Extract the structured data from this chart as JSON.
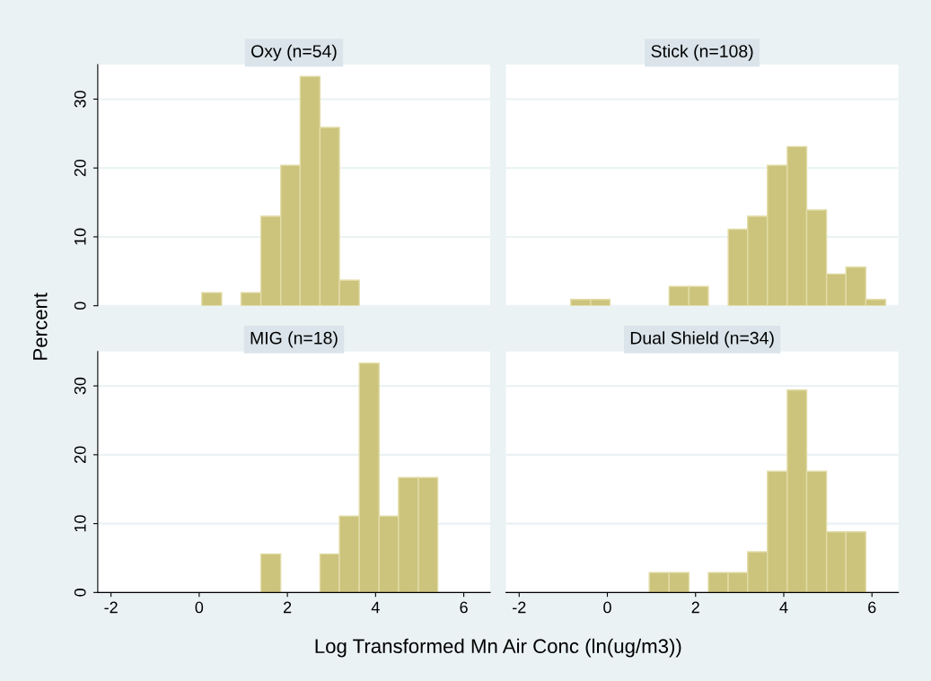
{
  "chart_data": [
    {
      "type": "histogram",
      "title": "Oxy (n=54)",
      "ylabel": "Percent",
      "bins": [
        -0.83,
        -0.38,
        0.06,
        0.51,
        0.95,
        1.4,
        1.85,
        2.29,
        2.74,
        3.18,
        3.63,
        4.08,
        4.52,
        4.97,
        5.41,
        5.86,
        6.31
      ],
      "values": [
        0,
        0,
        1.9,
        0,
        1.9,
        13.0,
        20.4,
        33.3,
        25.9,
        3.7,
        0,
        0,
        0,
        0,
        0,
        0
      ],
      "color": "#ccc47c",
      "xlim": [
        -2.3,
        6.6
      ],
      "ylim": [
        0,
        35
      ],
      "xticks": [
        -2,
        0,
        2,
        4,
        6
      ],
      "yticks": [
        0,
        10,
        20,
        30
      ],
      "grid": "y",
      "tick_labels": "y"
    },
    {
      "type": "histogram",
      "title": "Stick (n=108)",
      "bins": [
        -0.83,
        -0.38,
        0.06,
        0.51,
        0.95,
        1.4,
        1.85,
        2.29,
        2.74,
        3.18,
        3.63,
        4.08,
        4.52,
        4.97,
        5.41,
        5.86,
        6.31
      ],
      "values": [
        0.9,
        0.9,
        0,
        0,
        0,
        2.8,
        2.8,
        0,
        11.1,
        13.0,
        20.4,
        23.1,
        13.9,
        4.6,
        5.6,
        0.9
      ],
      "color": "#ccc47c",
      "xlim": [
        -2.3,
        6.6
      ],
      "ylim": [
        0,
        35
      ],
      "xticks": [
        -2,
        0,
        2,
        4,
        6
      ],
      "yticks": [
        0,
        10,
        20,
        30
      ],
      "grid": "y",
      "tick_labels": false
    },
    {
      "type": "histogram",
      "title": "MIG (n=18)",
      "xlabel": "Log Transformed Mn Air Conc (ln(ug/m3))",
      "bins": [
        -0.83,
        -0.38,
        0.06,
        0.51,
        0.95,
        1.4,
        1.85,
        2.29,
        2.74,
        3.18,
        3.63,
        4.08,
        4.52,
        4.97,
        5.41,
        5.86,
        6.31
      ],
      "values": [
        0,
        0,
        0,
        0,
        0,
        5.6,
        0,
        0,
        5.6,
        11.1,
        33.3,
        11.1,
        16.7,
        16.7,
        0,
        0
      ],
      "color": "#ccc47c",
      "xlim": [
        -2.3,
        6.6
      ],
      "ylim": [
        0,
        35
      ],
      "xticks": [
        -2,
        0,
        2,
        4,
        6
      ],
      "yticks": [
        0,
        10,
        20,
        30
      ],
      "grid": "y"
    },
    {
      "type": "histogram",
      "title": "Dual Shield (n=34)",
      "bins": [
        -0.83,
        -0.38,
        0.06,
        0.51,
        0.95,
        1.4,
        1.85,
        2.29,
        2.74,
        3.18,
        3.63,
        4.08,
        4.52,
        4.97,
        5.41,
        5.86,
        6.31
      ],
      "values": [
        0,
        0,
        0,
        0,
        2.9,
        2.9,
        0,
        2.9,
        2.9,
        5.9,
        17.6,
        29.4,
        17.6,
        8.8,
        8.8,
        0
      ],
      "color": "#ccc47c",
      "xlim": [
        -2.3,
        6.6
      ],
      "ylim": [
        0,
        35
      ],
      "xticks": [
        -2,
        0,
        2,
        4,
        6
      ],
      "yticks": [
        0,
        10,
        20,
        30
      ],
      "grid": "y",
      "tick_labels": "x"
    }
  ]
}
